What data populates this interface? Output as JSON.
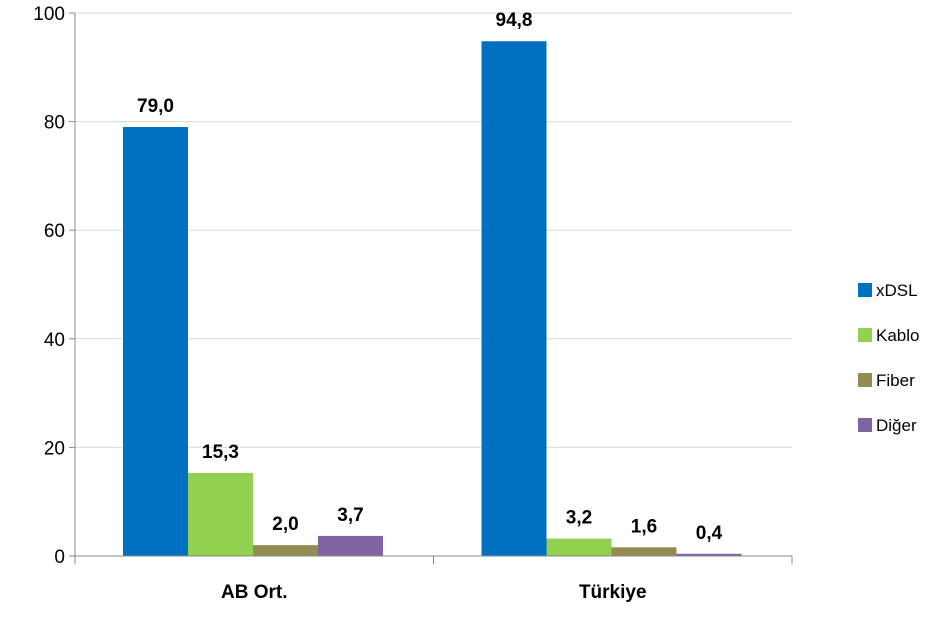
{
  "chart_data": {
    "type": "bar",
    "categories": [
      "AB Ort.",
      "Türkiye"
    ],
    "series": [
      {
        "name": "xDSL",
        "values": [
          79.0,
          94.8
        ],
        "labels": [
          "79,0",
          "94,8"
        ],
        "color": "#0070C0"
      },
      {
        "name": "Kablo",
        "values": [
          15.3,
          3.2
        ],
        "labels": [
          "15,3",
          "3,2"
        ],
        "color": "#92D050"
      },
      {
        "name": "Fiber",
        "values": [
          2.0,
          1.6
        ],
        "labels": [
          "2,0",
          "1,6"
        ],
        "color": "#948A54"
      },
      {
        "name": "Diğer",
        "values": [
          3.7,
          0.4
        ],
        "labels": [
          "3,7",
          "0,4"
        ],
        "color": "#8064A2"
      }
    ],
    "ylim": [
      0,
      100
    ],
    "yticks": [
      0,
      20,
      40,
      60,
      80,
      100
    ],
    "grid": true,
    "legend_position": "right",
    "title": "",
    "xlabel": "",
    "ylabel": ""
  }
}
